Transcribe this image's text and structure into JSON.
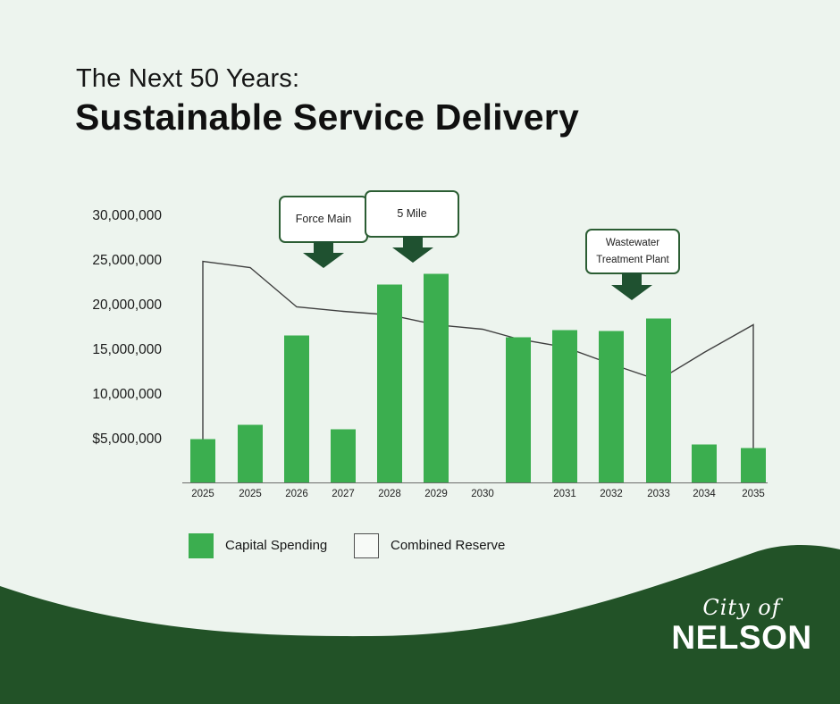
{
  "header": {
    "kicker": "The Next 50 Years:",
    "title": "Sustainable Service Delivery"
  },
  "chart_data": {
    "type": "bar",
    "categories": [
      "2025",
      "2025",
      "2026",
      "2027",
      "2028",
      "2029",
      "2030",
      "",
      "2031",
      "2032",
      "2033",
      "2034",
      "2035"
    ],
    "series": [
      {
        "name": "Capital Spending",
        "type": "bar",
        "color": "#3bae4f",
        "values": [
          4900000,
          6500000,
          16500000,
          6000000,
          22200000,
          23400000,
          null,
          16300000,
          17100000,
          17000000,
          18400000,
          4300000,
          3900000
        ]
      },
      {
        "name": "Combined Reserve",
        "type": "line",
        "color": "#3f3f3f",
        "values": [
          24800000,
          24100000,
          19700000,
          19200000,
          18800000,
          17700000,
          17200000,
          16100000,
          15200000,
          13300000,
          11500000,
          14600000,
          17700000
        ]
      }
    ],
    "yticks": [
      {
        "label": "30,000,000",
        "value": 30000000
      },
      {
        "label": "25,000,000",
        "value": 25000000
      },
      {
        "label": "20,000,000",
        "value": 20000000
      },
      {
        "label": "15,000,000",
        "value": 15000000
      },
      {
        "label": "10,000,000",
        "value": 10000000
      },
      {
        "label": "$5,000,000",
        "value": 5000000
      }
    ],
    "ylim": [
      0,
      32000000
    ],
    "xlabel": "",
    "ylabel": "",
    "grid": false,
    "legend_position": "bottom-left",
    "line_endpoints_drop_to_baseline": true,
    "annotations": [
      {
        "label": "Force Main"
      },
      {
        "label": "5 Mile"
      },
      {
        "label": "Wastewater Treatment Plant"
      }
    ]
  },
  "legend": {
    "items": [
      {
        "label": "Capital Spending",
        "swatch": "filled"
      },
      {
        "label": "Combined Reserve",
        "swatch": "outlined"
      }
    ]
  },
  "logo": {
    "line1": "City of",
    "line2": "NELSON"
  },
  "colors": {
    "background": "#edf4ee",
    "bar_green": "#3bae4f",
    "dark_green": "#225227",
    "callout_border": "#2b5d33",
    "line": "#3f3f3f",
    "text": "#1a1a1a",
    "logo_text": "#ffffff"
  }
}
